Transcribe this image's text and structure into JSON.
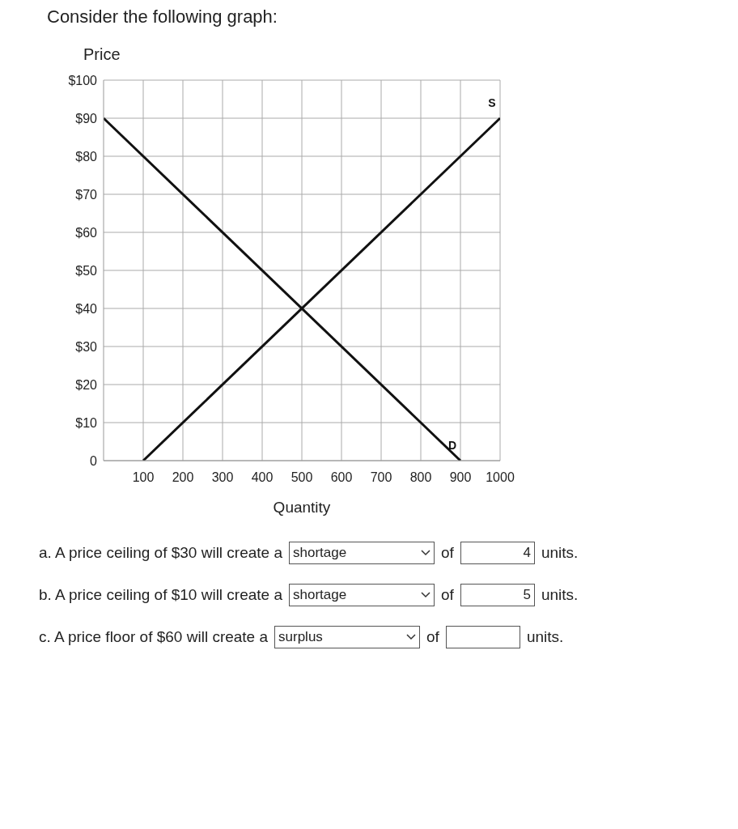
{
  "chart_data": {
    "type": "line",
    "title": "Consider the following graph:",
    "xlabel": "Quantity",
    "ylabel": "Price",
    "xlim": [
      0,
      1000
    ],
    "ylim": [
      0,
      100
    ],
    "xticks": [
      100,
      200,
      300,
      400,
      500,
      600,
      700,
      800,
      900,
      1000
    ],
    "yticks": [
      0,
      {
        "value": 10,
        "label": "$10"
      },
      {
        "value": 20,
        "label": "$20"
      },
      {
        "value": 30,
        "label": "$30"
      },
      {
        "value": 40,
        "label": "$40"
      },
      {
        "value": 50,
        "label": "$50"
      },
      {
        "value": 60,
        "label": "$60"
      },
      {
        "value": 70,
        "label": "$70"
      },
      {
        "value": 80,
        "label": "$80"
      },
      {
        "value": 90,
        "label": "$90"
      },
      {
        "value": 100,
        "label": "$100"
      }
    ],
    "grid": true,
    "series": [
      {
        "name": "S",
        "color": "#111111",
        "x": [
          100,
          1000
        ],
        "values": [
          0,
          90
        ]
      },
      {
        "name": "D",
        "color": "#111111",
        "x": [
          0,
          900
        ],
        "values": [
          90,
          0
        ]
      }
    ],
    "annotations": [
      "a. A price ceiling of $30 will create a",
      "shortage",
      "of",
      "4",
      "units.",
      "b. A price ceiling of $10 will create a",
      "shortage",
      "of",
      "5",
      "units.",
      "c. A price floor of $60 will create a",
      "surplus",
      "of",
      "units."
    ]
  }
}
